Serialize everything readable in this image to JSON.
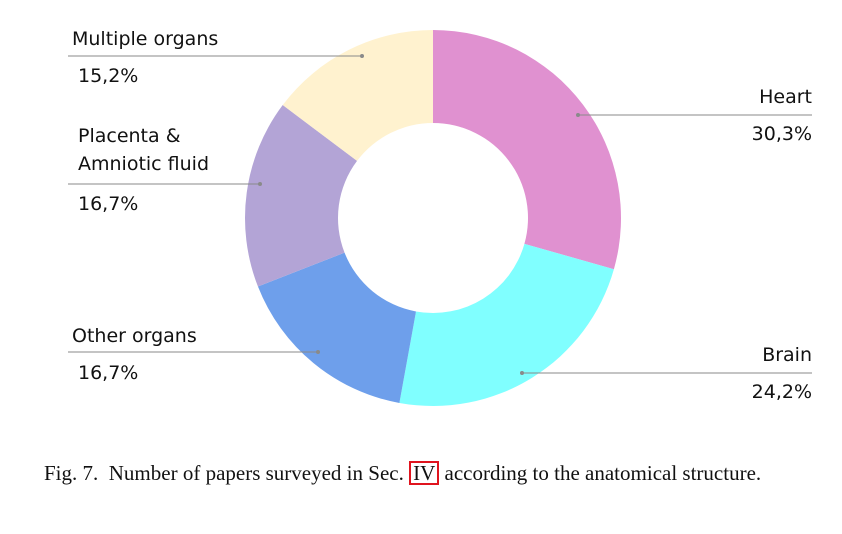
{
  "chart_data": {
    "type": "pie",
    "style": "donut",
    "slices": [
      {
        "label": "Heart",
        "value": 30.3,
        "value_text": "30,3%",
        "color": "#E091D0"
      },
      {
        "label": "Brain",
        "value": 24.2,
        "value_text": "24,2%",
        "color": "#80FFFF"
      },
      {
        "label": "Other organs",
        "value": 16.7,
        "value_text": "16,7%",
        "color": "#6E9FEB"
      },
      {
        "label": "Placenta & Amniotic fluid",
        "label_lines": [
          "Placenta &",
          "Amniotic fluid"
        ],
        "value": 16.7,
        "value_text": "16,7%",
        "color": "#B3A4D6"
      },
      {
        "label": "Multiple organs",
        "value": 15.2,
        "value_text": "15,2%",
        "color": "#FFF2CF"
      }
    ]
  },
  "caption": {
    "prefix": "Fig. 7.",
    "text_before": "Number of papers surveyed in Sec.",
    "ref": "IV",
    "text_after": "according to the anatomical structure."
  }
}
